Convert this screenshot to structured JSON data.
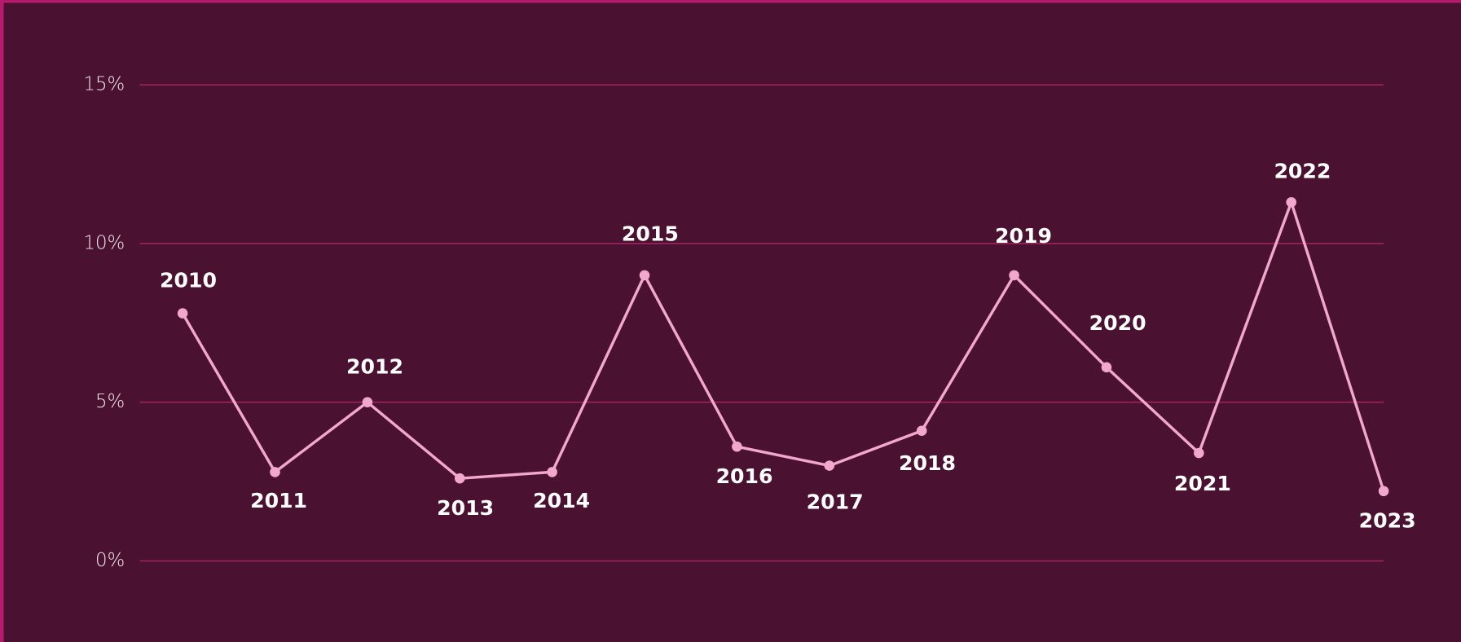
{
  "chart_data": {
    "type": "line",
    "categories": [
      "2010",
      "2011",
      "2012",
      "2013",
      "2014",
      "2015",
      "2016",
      "2017",
      "2018",
      "2019",
      "2020",
      "2021",
      "2022",
      "2023"
    ],
    "values": [
      7.8,
      2.8,
      5.0,
      2.6,
      2.8,
      9.0,
      3.6,
      3.0,
      4.1,
      9.0,
      6.1,
      3.4,
      11.3,
      2.2
    ],
    "color": "#f2a7cf",
    "ylim": [
      0,
      15
    ],
    "yticks": [
      {
        "value": 0,
        "label": "0%"
      },
      {
        "value": 5,
        "label": "5%"
      },
      {
        "value": 10,
        "label": "10%"
      },
      {
        "value": 15,
        "label": "15%"
      }
    ],
    "grid": true
  }
}
